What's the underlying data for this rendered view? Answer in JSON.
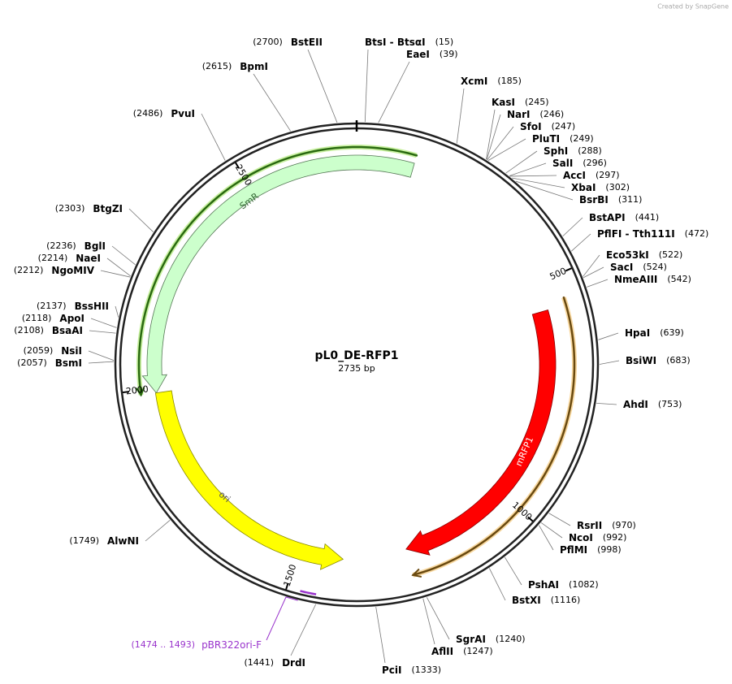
{
  "credit": "Created by SnapGene",
  "title": "pL0_DE-RFP1",
  "size_label": "2735 bp",
  "length": 2735,
  "ticks": [
    500,
    1000,
    1500,
    2000,
    2500
  ],
  "features": [
    {
      "name": "SmR"
    },
    {
      "name": "mRFP1"
    },
    {
      "name": "ori"
    }
  ],
  "primer": {
    "range_label": "(1474 .. 1493)",
    "name": "pBR322ori-F",
    "position": 1474
  },
  "enzymes": [
    {
      "name": "BtsI - BtsαI",
      "position": 15,
      "position_label": "(15)"
    },
    {
      "name": "EaeI",
      "position": 39,
      "position_label": "(39)"
    },
    {
      "name": "XcmI",
      "position": 185,
      "position_label": "(185)"
    },
    {
      "name": "KasI",
      "position": 245,
      "position_label": "(245)"
    },
    {
      "name": "NarI",
      "position": 246,
      "position_label": "(246)"
    },
    {
      "name": "SfoI",
      "position": 247,
      "position_label": "(247)"
    },
    {
      "name": "PluTI",
      "position": 249,
      "position_label": "(249)"
    },
    {
      "name": "SphI",
      "position": 288,
      "position_label": "(288)"
    },
    {
      "name": "SalI",
      "position": 296,
      "position_label": "(296)"
    },
    {
      "name": "AccI",
      "position": 297,
      "position_label": "(297)"
    },
    {
      "name": "XbaI",
      "position": 302,
      "position_label": "(302)"
    },
    {
      "name": "BsrBI",
      "position": 311,
      "position_label": "(311)"
    },
    {
      "name": "BstAPI",
      "position": 441,
      "position_label": "(441)"
    },
    {
      "name": "PflFI - Tth111I",
      "position": 472,
      "position_label": "(472)"
    },
    {
      "name": "Eco53kI",
      "position": 522,
      "position_label": "(522)"
    },
    {
      "name": "SacI",
      "position": 524,
      "position_label": "(524)"
    },
    {
      "name": "NmeAIII",
      "position": 542,
      "position_label": "(542)"
    },
    {
      "name": "HpaI",
      "position": 639,
      "position_label": "(639)"
    },
    {
      "name": "BsiWI",
      "position": 683,
      "position_label": "(683)"
    },
    {
      "name": "AhdI",
      "position": 753,
      "position_label": "(753)"
    },
    {
      "name": "RsrII",
      "position": 970,
      "position_label": "(970)"
    },
    {
      "name": "NcoI",
      "position": 992,
      "position_label": "(992)"
    },
    {
      "name": "PflMI",
      "position": 998,
      "position_label": "(998)"
    },
    {
      "name": "PshAI",
      "position": 1082,
      "position_label": "(1082)"
    },
    {
      "name": "BstXI",
      "position": 1116,
      "position_label": "(1116)"
    },
    {
      "name": "SgrAI",
      "position": 1240,
      "position_label": "(1240)"
    },
    {
      "name": "AflII",
      "position": 1247,
      "position_label": "(1247)"
    },
    {
      "name": "PciI",
      "position": 1333,
      "position_label": "(1333)"
    },
    {
      "name": "DrdI",
      "position": 1441,
      "position_label": "(1441)"
    },
    {
      "name": "AlwNI",
      "position": 1749,
      "position_label": "(1749)"
    },
    {
      "name": "BsmI",
      "position": 2057,
      "position_label": "(2057)"
    },
    {
      "name": "NsiI",
      "position": 2059,
      "position_label": "(2059)"
    },
    {
      "name": "BsaAI",
      "position": 2108,
      "position_label": "(2108)"
    },
    {
      "name": "ApoI",
      "position": 2118,
      "position_label": "(2118)"
    },
    {
      "name": "BssHII",
      "position": 2137,
      "position_label": "(2137)"
    },
    {
      "name": "NgoMIV",
      "position": 2212,
      "position_label": "(2212)"
    },
    {
      "name": "NaeI",
      "position": 2214,
      "position_label": "(2214)"
    },
    {
      "name": "BglI",
      "position": 2236,
      "position_label": "(2236)"
    },
    {
      "name": "BtgZI",
      "position": 2303,
      "position_label": "(2303)"
    },
    {
      "name": "PvuI",
      "position": 2486,
      "position_label": "(2486)"
    },
    {
      "name": "BpmI",
      "position": 2615,
      "position_label": "(2615)"
    },
    {
      "name": "BstEII",
      "position": 2700,
      "position_label": "(2700)"
    }
  ]
}
